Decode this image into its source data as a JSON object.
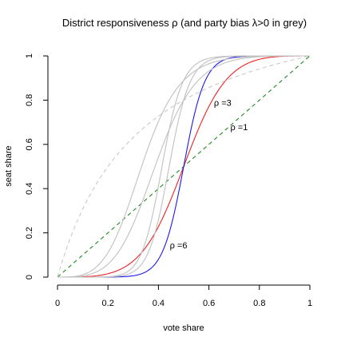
{
  "chart_data": {
    "type": "line",
    "title": "District responsiveness ρ  (and party bias λ>0 in grey)",
    "xlabel": "vote share",
    "ylabel": "seat share",
    "xlim": [
      0,
      1
    ],
    "ylim": [
      0,
      1
    ],
    "grid": false,
    "legend": "none",
    "x_ticks": [
      "0",
      "0.2",
      "0.4",
      "0.6",
      "0.8",
      "1"
    ],
    "x_tick_values": [
      0,
      0.2,
      0.4,
      0.6,
      0.8,
      1
    ],
    "y_ticks": [
      "0",
      "0.2",
      "0.4",
      "0.6",
      "0.8",
      "1"
    ],
    "y_tick_values": [
      0,
      0.2,
      0.4,
      0.6,
      0.8,
      1
    ],
    "series": [
      {
        "label": "ρ =1",
        "rho": 1,
        "lambda": 1,
        "color": "#228b22",
        "dash": "dashed",
        "x": [
          0,
          0.1,
          0.2,
          0.3,
          0.4,
          0.5,
          0.6,
          0.7,
          0.8,
          0.9,
          1
        ],
        "y": [
          0,
          0.1,
          0.2,
          0.3,
          0.4,
          0.5,
          0.6,
          0.7,
          0.8,
          0.9,
          1
        ]
      },
      {
        "label": "ρ =3",
        "rho": 3,
        "lambda": 1,
        "color": "#ee2222",
        "dash": "solid",
        "x": [
          0,
          0.1,
          0.2,
          0.3,
          0.4,
          0.5,
          0.6,
          0.7,
          0.8,
          0.9,
          1
        ],
        "y": [
          0,
          0.0014,
          0.0154,
          0.0729,
          0.2286,
          0.5,
          0.7714,
          0.9271,
          0.9846,
          0.9986,
          1
        ]
      },
      {
        "label": "ρ =6",
        "rho": 6,
        "lambda": 1,
        "color": "#1a1aee",
        "dash": "solid",
        "x": [
          0,
          0.1,
          0.2,
          0.3,
          0.4,
          0.5,
          0.6,
          0.7,
          0.8,
          0.9,
          1
        ],
        "y": [
          0,
          2e-06,
          0.0002,
          0.0062,
          0.0808,
          0.5,
          0.9192,
          0.9938,
          0.9998,
          1,
          1
        ]
      },
      {
        "label": "",
        "rho": 1,
        "lambda": 4,
        "color": "#c8c8c8",
        "dash": "dashed",
        "x": [
          0,
          0.1,
          0.2,
          0.3,
          0.4,
          0.5,
          0.6,
          0.7,
          0.8,
          0.9,
          1
        ],
        "y": [
          0,
          0.3077,
          0.5,
          0.6316,
          0.7273,
          0.8,
          0.8571,
          0.9032,
          0.9412,
          0.973,
          1
        ]
      },
      {
        "label": "",
        "rho": 3,
        "lambda": 4,
        "color": "#c0c0c0",
        "dash": "solid",
        "x": [
          0,
          0.1,
          0.2,
          0.3,
          0.4,
          0.5,
          0.6,
          0.7,
          0.8,
          0.9,
          1
        ],
        "y": [
          0,
          0.0055,
          0.0588,
          0.2391,
          0.5424,
          0.8,
          0.931,
          0.9805,
          0.9961,
          0.9997,
          1
        ]
      },
      {
        "label": "",
        "rho": 6,
        "lambda": 4,
        "color": "#c0c0c0",
        "dash": "solid",
        "x": [
          0,
          0.1,
          0.2,
          0.3,
          0.4,
          0.5,
          0.6,
          0.7,
          0.8,
          0.9,
          1
        ],
        "y": [
          0,
          1e-05,
          0.001,
          0.0242,
          0.2598,
          0.8,
          0.9785,
          0.9985,
          1,
          1,
          1
        ]
      },
      {
        "label": "",
        "rho": 3,
        "lambda": 8,
        "color": "#c0c0c0",
        "dash": "solid",
        "x": [
          0,
          0.1,
          0.2,
          0.3,
          0.4,
          0.5,
          0.6,
          0.7,
          0.8,
          0.9,
          1
        ],
        "y": [
          0,
          0.0109,
          0.1111,
          0.3864,
          0.7033,
          0.8889,
          0.9643,
          0.9897,
          0.998,
          0.9999,
          1
        ]
      },
      {
        "label": "",
        "rho": 6,
        "lambda": 8,
        "color": "#c0c0c0",
        "dash": "solid",
        "x": [
          0,
          0.1,
          0.2,
          0.3,
          0.4,
          0.5,
          0.6,
          0.7,
          0.8,
          0.9,
          1
        ],
        "y": [
          0,
          2e-05,
          0.002,
          0.0473,
          0.4126,
          0.8889,
          0.9894,
          0.9993,
          1,
          1,
          1
        ]
      }
    ],
    "annotations": [
      {
        "text": "ρ =3",
        "x": 0.62,
        "y": 0.775
      },
      {
        "text": "ρ =1",
        "x": 0.685,
        "y": 0.665
      },
      {
        "text": "ρ =6",
        "x": 0.445,
        "y": 0.13
      }
    ]
  }
}
